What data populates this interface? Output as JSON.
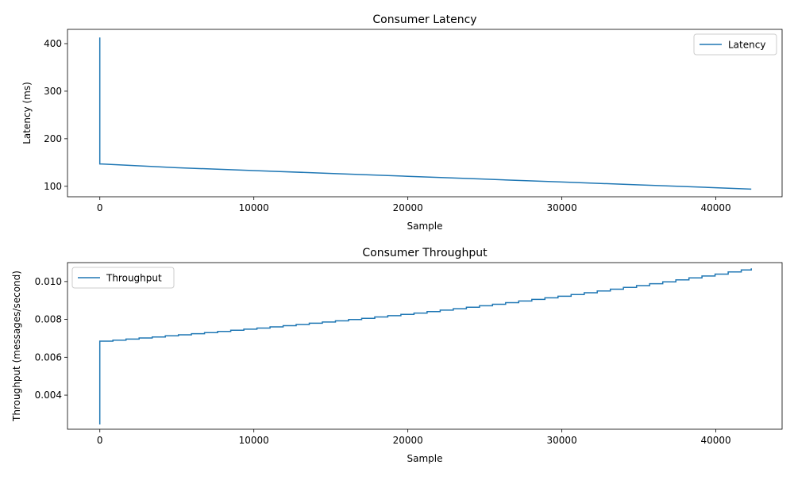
{
  "chart_data": [
    {
      "type": "line",
      "title": "Consumer Latency",
      "xlabel": "Sample",
      "ylabel": "Latency (ms)",
      "xlim": [
        -2100,
        44300
      ],
      "ylim": [
        78,
        430
      ],
      "xticks": [
        0,
        10000,
        20000,
        30000,
        40000
      ],
      "xtick_labels": [
        "0",
        "10000",
        "20000",
        "30000",
        "40000"
      ],
      "yticks": [
        100,
        200,
        300,
        400
      ],
      "ytick_labels": [
        "100",
        "200",
        "300",
        "400"
      ],
      "legend": "top-right",
      "grid": false,
      "color": "#1f77b4",
      "series": [
        {
          "name": "Latency",
          "x": [
            0,
            0,
            0,
            5000,
            10000,
            15000,
            20000,
            25000,
            30000,
            35000,
            40000,
            42300
          ],
          "y": [
            413,
            300,
            147,
            139,
            133,
            127,
            121,
            115,
            109,
            103,
            97,
            94
          ]
        }
      ]
    },
    {
      "type": "line",
      "title": "Consumer Throughput",
      "xlabel": "Sample",
      "ylabel": "Throughput (messages/second)",
      "xlim": [
        -2100,
        44300
      ],
      "ylim": [
        0.0022,
        0.011
      ],
      "xticks": [
        0,
        10000,
        20000,
        30000,
        40000
      ],
      "xtick_labels": [
        "0",
        "10000",
        "20000",
        "30000",
        "40000"
      ],
      "yticks": [
        0.004,
        0.006,
        0.008,
        0.01
      ],
      "ytick_labels": [
        "0.004",
        "0.006",
        "0.008",
        "0.010"
      ],
      "legend": "top-left",
      "grid": false,
      "color": "#1f77b4",
      "series": [
        {
          "name": "Throughput",
          "x": [
            0,
            0,
            0,
            5000,
            10000,
            15000,
            20000,
            25000,
            30000,
            35000,
            40000,
            42300
          ],
          "y": [
            0.00245,
            0.005,
            0.00685,
            0.00718,
            0.00753,
            0.0079,
            0.0083,
            0.00875,
            0.00925,
            0.0098,
            0.0104,
            0.0107
          ]
        }
      ]
    }
  ]
}
